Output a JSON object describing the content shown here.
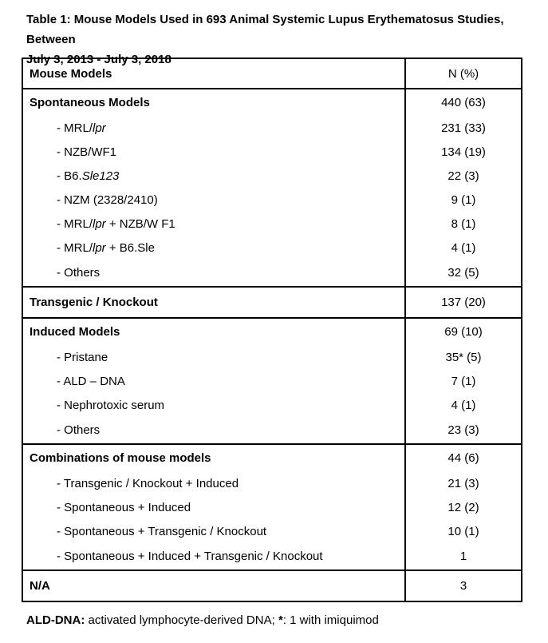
{
  "page": {
    "background_color": "#ffffff",
    "text_color": "#000000",
    "border_color": "#000000"
  },
  "title": {
    "lines": [
      "Table 1: Mouse Models Used in 693 Animal Systemic Lupus Erythematosus Studies, Between",
      "July 3, 2013 - July 3, 2018"
    ]
  },
  "table": {
    "header": {
      "col1": "Mouse Models",
      "col2": "N (%)"
    },
    "sections": [
      {
        "name": "spontaneous-models",
        "rows": [
          {
            "parts": [
              {
                "text": "Spontaneous Models"
              }
            ],
            "bold": true,
            "indent": false,
            "value": "440 (63)"
          },
          {
            "parts": [
              {
                "text": "- MRL/"
              },
              {
                "text": "lpr",
                "italic": true
              }
            ],
            "indent": true,
            "value": "231 (33)"
          },
          {
            "parts": [
              {
                "text": "- NZB/WF1"
              }
            ],
            "indent": true,
            "value": "134 (19)"
          },
          {
            "parts": [
              {
                "text": "- B6."
              },
              {
                "text": "Sle123",
                "italic": true
              }
            ],
            "indent": true,
            "value": "22 (3)"
          },
          {
            "parts": [
              {
                "text": "- NZM (2328/2410)"
              }
            ],
            "indent": true,
            "value": "9 (1)"
          },
          {
            "parts": [
              {
                "text": "- MRL/"
              },
              {
                "text": "lpr",
                "italic": true
              },
              {
                "text": " + NZB/W F1"
              }
            ],
            "indent": true,
            "value": "8 (1)"
          },
          {
            "parts": [
              {
                "text": "- MRL/"
              },
              {
                "text": "lpr",
                "italic": true
              },
              {
                "text": " + B6.Sle"
              }
            ],
            "indent": true,
            "value": "4 (1)"
          },
          {
            "parts": [
              {
                "text": "- Others"
              }
            ],
            "indent": true,
            "value": "32 (5)"
          }
        ]
      },
      {
        "name": "transgenic-knockout",
        "rows": [
          {
            "parts": [
              {
                "text": "Transgenic / Knockout"
              }
            ],
            "bold": true,
            "indent": false,
            "value": "137 (20)"
          }
        ]
      },
      {
        "name": "induced-models",
        "rows": [
          {
            "parts": [
              {
                "text": "Induced Models"
              }
            ],
            "bold": true,
            "indent": false,
            "value": "69 (10)"
          },
          {
            "parts": [
              {
                "text": "- Pristane"
              }
            ],
            "indent": true,
            "value": "35* (5)"
          },
          {
            "parts": [
              {
                "text": "- ALD – DNA"
              }
            ],
            "indent": true,
            "value": "7 (1)"
          },
          {
            "parts": [
              {
                "text": "- Nephrotoxic serum"
              }
            ],
            "indent": true,
            "value": "4 (1)"
          },
          {
            "parts": [
              {
                "text": "- Others"
              }
            ],
            "indent": true,
            "value": "23 (3)"
          }
        ]
      },
      {
        "name": "combinations",
        "rows": [
          {
            "parts": [
              {
                "text": "Combinations of mouse models"
              }
            ],
            "bold": true,
            "indent": false,
            "value": "44 (6)"
          },
          {
            "parts": [
              {
                "text": "- Transgenic / Knockout + Induced"
              }
            ],
            "indent": true,
            "value": "21 (3)"
          },
          {
            "parts": [
              {
                "text": "- Spontaneous + Induced"
              }
            ],
            "indent": true,
            "value": "12 (2)"
          },
          {
            "parts": [
              {
                "text": "- Spontaneous + Transgenic / Knockout"
              }
            ],
            "indent": true,
            "value": "10 (1)"
          },
          {
            "parts": [
              {
                "text": "- Spontaneous + Induced + Transgenic / Knockout"
              }
            ],
            "indent": true,
            "value": "1"
          }
        ]
      },
      {
        "name": "na",
        "rows": [
          {
            "parts": [
              {
                "text": "N/A"
              }
            ],
            "bold": true,
            "indent": false,
            "value": "3"
          }
        ]
      }
    ]
  },
  "footnote": {
    "parts": [
      {
        "text": "ALD-DNA:",
        "bold": true
      },
      {
        "text": " activated lymphocyte-derived DNA; "
      },
      {
        "text": "*",
        "bold": true
      },
      {
        "text": ": 1 with imiquimod"
      }
    ]
  }
}
